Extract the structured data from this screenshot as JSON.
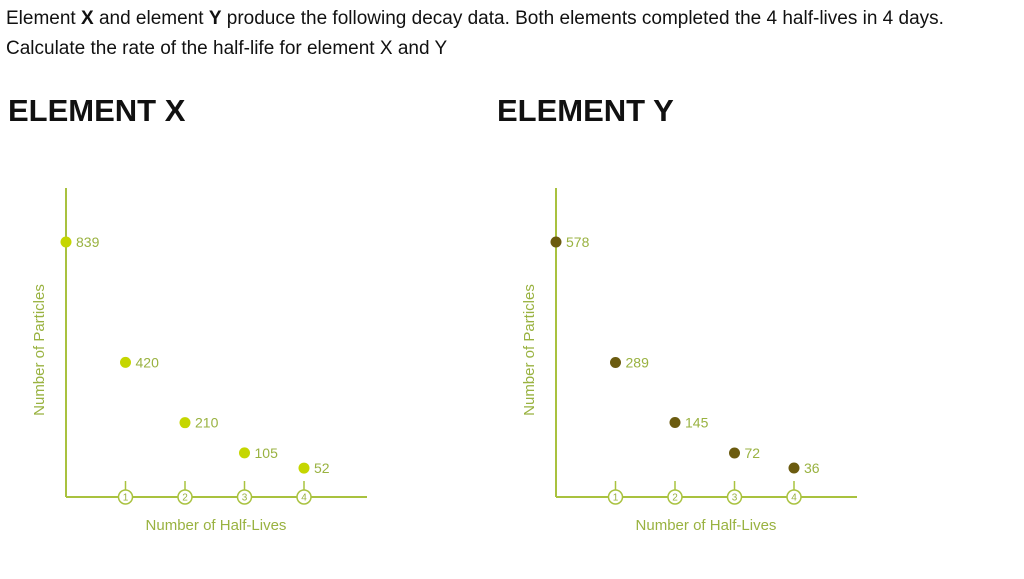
{
  "question": {
    "p1": "Element ",
    "x": "X",
    "p2": " and element ",
    "y": "Y",
    "p3": " produce the following decay data. Both elements completed the 4 half-lives in 4 days. Calculate the rate of the half-life for element X and Y"
  },
  "chart_data": [
    {
      "type": "scatter",
      "title": "ELEMENT X",
      "xlabel": "Number of Half-Lives",
      "ylabel": "Number of Particles",
      "x": [
        0,
        1,
        2,
        3,
        4
      ],
      "values": [
        839,
        420,
        210,
        105,
        52
      ],
      "data_labels": [
        "839",
        "420",
        "210",
        "105",
        "52"
      ],
      "tick_labels": [
        "1",
        "2",
        "3",
        "4"
      ],
      "xlim": [
        0,
        4.2
      ],
      "ylim": [
        0,
        839
      ],
      "grid": false,
      "marker_color": "#c5d600",
      "axis_color": "#a9c23f",
      "text_color": "#99b240"
    },
    {
      "type": "scatter",
      "title": "ELEMENT Y",
      "xlabel": "Number of Half-Lives",
      "ylabel": "Number of Particles",
      "x": [
        0,
        1,
        2,
        3,
        4
      ],
      "values": [
        578,
        289,
        145,
        72,
        36
      ],
      "data_labels": [
        "578",
        "289",
        "145",
        "72",
        "36"
      ],
      "tick_labels": [
        "1",
        "2",
        "3",
        "4"
      ],
      "xlim": [
        0,
        4.2
      ],
      "ylim": [
        0,
        578
      ],
      "grid": false,
      "marker_color": "#6b5b0f",
      "axis_color": "#a9c23f",
      "text_color": "#99b240"
    }
  ]
}
